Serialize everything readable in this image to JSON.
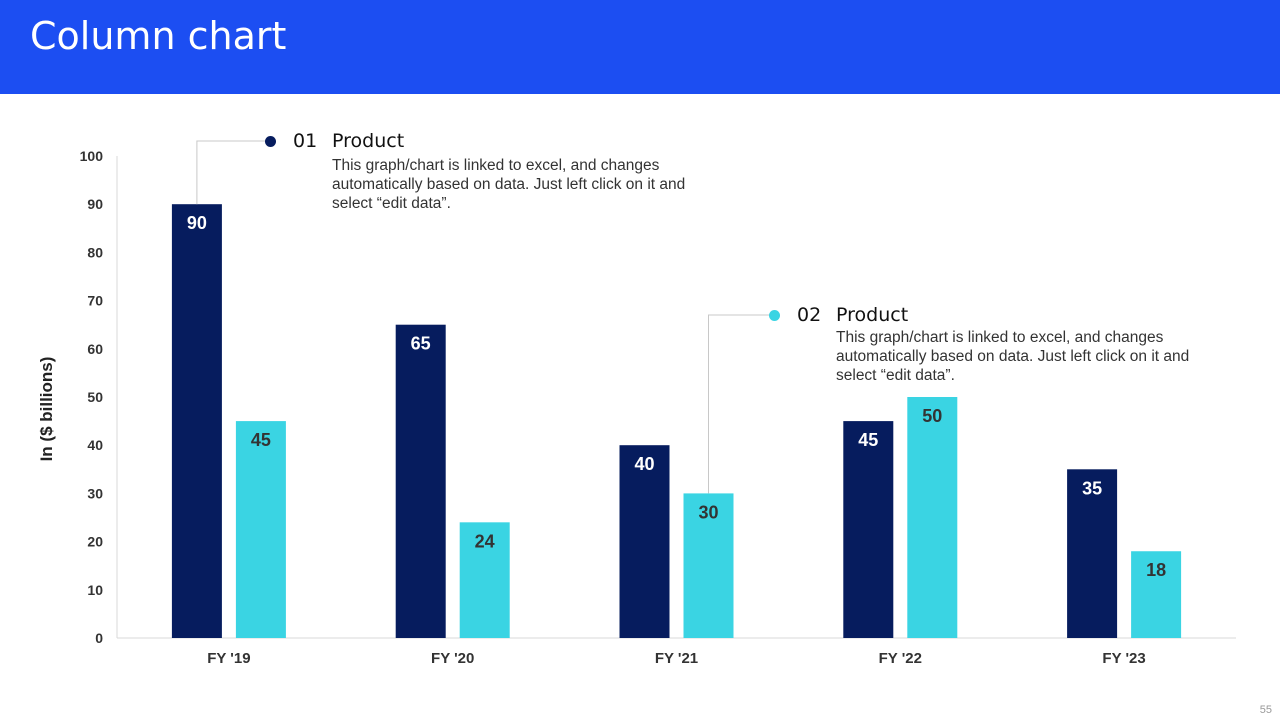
{
  "slide": {
    "title": "Column chart",
    "page_number": "55"
  },
  "colors": {
    "header_bg": "#1c4ef2",
    "series1": "#061c5e",
    "series2": "#3ad4e3"
  },
  "annotations": [
    {
      "number": "01",
      "title": "Product",
      "text": "This graph/chart is linked to excel, and changes automatically based on data. Just left click on it and select “edit data”.",
      "color": "#061c5e"
    },
    {
      "number": "02",
      "title": "Product",
      "text": "This graph/chart is linked to excel, and changes automatically based on data. Just left click on it and select “edit data”.",
      "color": "#3ad4e3"
    }
  ],
  "chart_data": {
    "type": "bar",
    "title": "",
    "xlabel": "",
    "ylabel": "In ($ billions)",
    "categories": [
      "FY '19",
      "FY '20",
      "FY '21",
      "FY '22",
      "FY '23"
    ],
    "series": [
      {
        "name": "Product 01",
        "values": [
          90,
          65,
          40,
          45,
          35
        ],
        "color": "#061c5e",
        "label_color": "#ffffff"
      },
      {
        "name": "Product 02",
        "values": [
          45,
          24,
          30,
          50,
          18
        ],
        "color": "#3ad4e3",
        "label_color": "#333333"
      }
    ],
    "ylim": [
      0,
      100
    ],
    "yticks": [
      "0",
      "10",
      "20",
      "30",
      "40",
      "50",
      "60",
      "70",
      "80",
      "90",
      "100"
    ],
    "grid": false,
    "legend": "none"
  }
}
